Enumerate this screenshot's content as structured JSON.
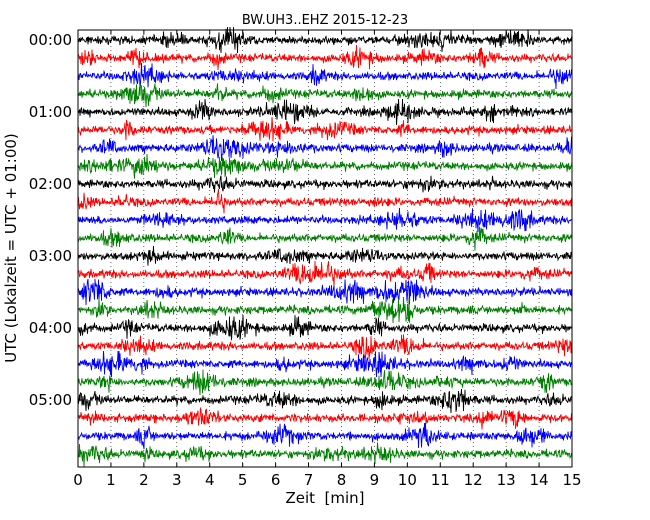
{
  "chart_data": {
    "type": "line",
    "title": "BW.UH3..EHZ 2015-12-23",
    "xlabel": "Zeit  [min]",
    "ylabel": "UTC (Lokalzeit = UTC + 01:00)",
    "xlim": [
      0,
      15
    ],
    "x_ticks": [
      "0",
      "1",
      "2",
      "3",
      "4",
      "5",
      "6",
      "7",
      "8",
      "9",
      "10",
      "11",
      "12",
      "13",
      "14",
      "15"
    ],
    "y_tick_labels": [
      "00:00",
      "01:00",
      "02:00",
      "03:00",
      "04:00",
      "05:00"
    ],
    "trace_count": 24,
    "trace_interval_min": 15,
    "colors": [
      "#000000",
      "#ff0000",
      "#0000ff",
      "#008000"
    ],
    "grid": "dotted vertical at each minute",
    "legend": "none"
  }
}
